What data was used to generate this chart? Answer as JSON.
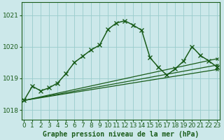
{
  "title": "Graphe pression niveau de la mer (hPa)",
  "bg_color": "#cce8ea",
  "grid_color": "#99cccc",
  "line_color": "#1a5c1a",
  "ylim": [
    1017.7,
    1021.4
  ],
  "yticks": [
    1018,
    1019,
    1020,
    1021
  ],
  "xlim": [
    -0.3,
    23.3
  ],
  "xticks": [
    0,
    1,
    2,
    3,
    4,
    5,
    6,
    7,
    8,
    9,
    10,
    11,
    12,
    13,
    14,
    15,
    16,
    17,
    18,
    19,
    20,
    21,
    22,
    23
  ],
  "series": [
    {
      "x": [
        0,
        1,
        2,
        3,
        4,
        5,
        6,
        7,
        8,
        9,
        10,
        11,
        12,
        13,
        14,
        15,
        16,
        17,
        18,
        19,
        20,
        21,
        22,
        23
      ],
      "y": [
        1018.3,
        1018.75,
        1018.6,
        1018.7,
        1018.85,
        1019.15,
        1019.5,
        1019.7,
        1019.9,
        1020.05,
        1020.55,
        1020.75,
        1020.82,
        1020.68,
        1020.52,
        1019.65,
        1019.35,
        1019.1,
        1019.3,
        1019.55,
        1020.0,
        1019.72,
        1019.55,
        1019.35
      ],
      "lw": 1.1,
      "marker": "x",
      "ms": 4,
      "mew": 1.0
    },
    {
      "x": [
        0,
        23
      ],
      "y": [
        1018.3,
        1019.62
      ],
      "lw": 0.9,
      "marker": "x",
      "ms": 3,
      "mew": 0.8
    },
    {
      "x": [
        0,
        23
      ],
      "y": [
        1018.3,
        1019.42
      ],
      "lw": 0.9,
      "marker": "x",
      "ms": 3,
      "mew": 0.8
    },
    {
      "x": [
        0,
        23
      ],
      "y": [
        1018.3,
        1019.28
      ],
      "lw": 0.9,
      "marker": "x",
      "ms": 3,
      "mew": 0.8
    }
  ],
  "title_fontsize": 7,
  "tick_fontsize": 6.5
}
